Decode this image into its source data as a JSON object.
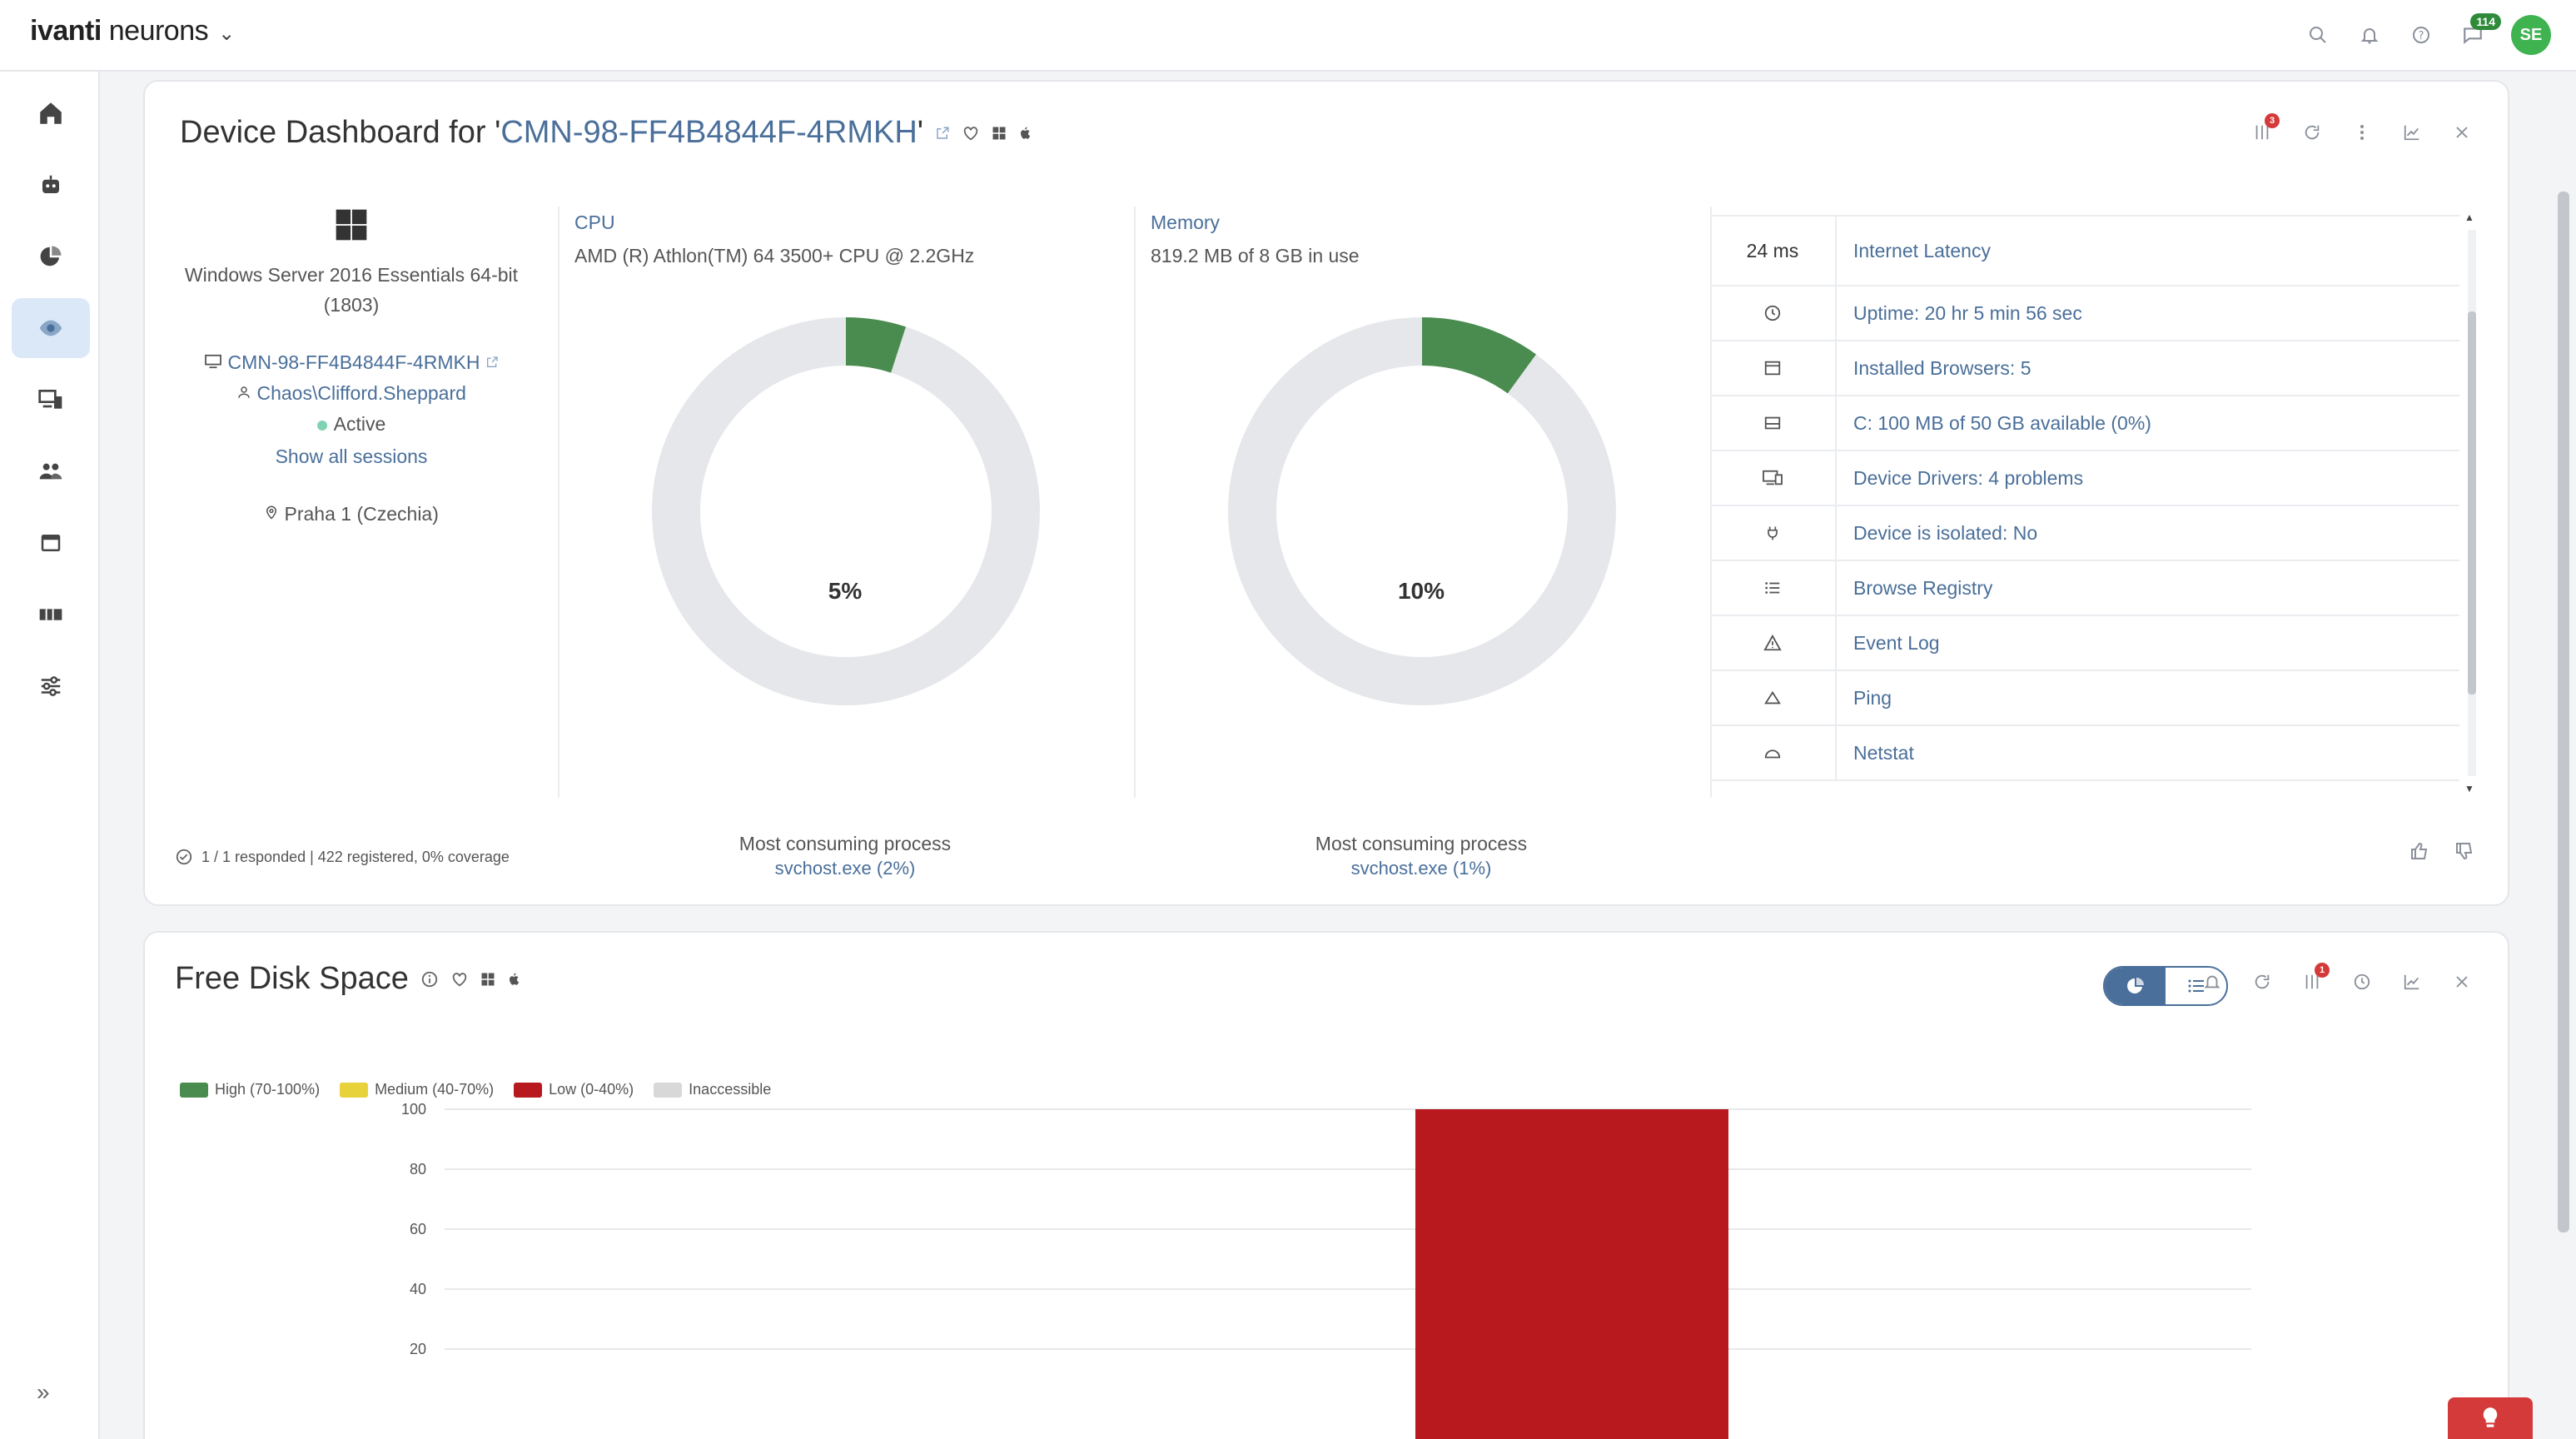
{
  "app": {
    "brand_bold": "ivanti",
    "brand_rest": " neurons",
    "notification_count": "114",
    "avatar_initials": "SE"
  },
  "sidebar": {
    "items": [
      {
        "icon": "home-icon"
      },
      {
        "icon": "bot-icon"
      },
      {
        "icon": "pie-chart-icon"
      },
      {
        "icon": "eye-icon",
        "active": true
      },
      {
        "icon": "devices-icon"
      },
      {
        "icon": "users-icon"
      },
      {
        "icon": "window-icon"
      },
      {
        "icon": "ticket-icon"
      },
      {
        "icon": "sliders-icon"
      }
    ]
  },
  "device_card": {
    "title_prefix": "Device Dashboard for '",
    "title_host": "CMN-98-FF4B4844F-4RMKH",
    "title_suffix": "'",
    "filter_badge": "3",
    "os": "Windows Server 2016 Essentials 64-bit (1803)",
    "hostname": "CMN-98-FF4B4844F-4RMKH",
    "user": "Chaos\\Clifford.Sheppard",
    "status": "Active",
    "sessions_link": "Show all sessions",
    "location": "Praha 1 (Czechia)",
    "cpu": {
      "title": "CPU",
      "subtitle": "AMD (R) Athlon(TM) 64 3500+ CPU @ 2.2GHz",
      "percent": 5,
      "label": "5%",
      "process_label": "Most consuming process",
      "process": "svchost.exe (2%)"
    },
    "memory": {
      "title": "Memory",
      "subtitle": "819.2 MB of 8 GB in use",
      "percent": 10,
      "label": "10%",
      "process_label": "Most consuming process",
      "process": "svchost.exe (1%)"
    },
    "actions": [
      {
        "icon": "",
        "value": "24 ms",
        "text": "Internet Latency"
      },
      {
        "icon": "clock-icon",
        "text": "Uptime: 20 hr 5 min 56 sec"
      },
      {
        "icon": "browser-icon",
        "text": "Installed Browsers: 5"
      },
      {
        "icon": "disk-icon",
        "text": "C: 100 MB of 50 GB available (0%)"
      },
      {
        "icon": "drivers-icon",
        "text": "Device Drivers: 4 problems"
      },
      {
        "icon": "plug-icon",
        "text": "Device is isolated: No"
      },
      {
        "icon": "list-icon",
        "text": "Browse Registry"
      },
      {
        "icon": "warning-icon",
        "text": "Event Log"
      },
      {
        "icon": "ping-icon",
        "text": "Ping"
      },
      {
        "icon": "netstat-icon",
        "text": "Netstat"
      }
    ],
    "footer": "1 / 1 responded | 422 registered, 0% coverage"
  },
  "disk_card": {
    "title": "Free Disk Space",
    "filter_badge": "1",
    "colors": {
      "high": "#4a8c4f",
      "medium": "#e8d23c",
      "low": "#b8191e",
      "inaccessible": "#d8d8d8"
    }
  },
  "chart_data": {
    "type": "bar",
    "legend": [
      {
        "name": "High (70-100%)",
        "color": "#4a8c4f"
      },
      {
        "name": "Medium (40-70%)",
        "color": "#e8d23c"
      },
      {
        "name": "Low (0-40%)",
        "color": "#b8191e"
      },
      {
        "name": "Inaccessible",
        "color": "#d8d8d8"
      }
    ],
    "legend_position": "top-left",
    "categories": [
      "Low (0-40%)"
    ],
    "series": [
      {
        "values": [
          100
        ]
      }
    ],
    "ylim": [
      0,
      100
    ],
    "yticks": [
      20,
      40,
      60,
      80,
      100
    ],
    "grid": true
  }
}
